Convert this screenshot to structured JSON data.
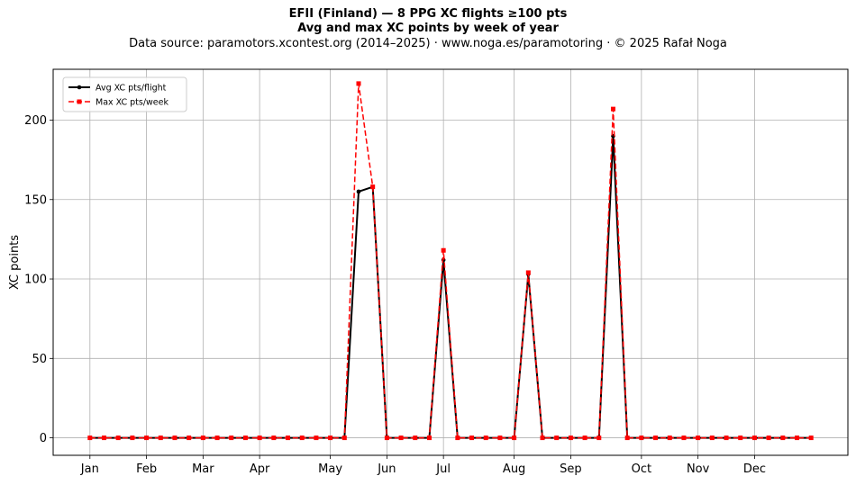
{
  "chart_data": {
    "type": "line",
    "title": "EFII (Finland)  —  8 PPG XC flights ≥100 pts",
    "subtitle": "Avg and max XC points by week of year",
    "source_line": "Data source: paramotors.xcontest.org (2014–2025)  ·  www.noga.es/paramotoring  ·  © 2025 Rafał Noga",
    "xlabel": "",
    "ylabel": "XC points",
    "x_unit": "week of year",
    "xlim": [
      -1.6,
      54.6
    ],
    "ylim": [
      -11,
      232
    ],
    "x_ticks": [
      {
        "label": "Jan",
        "week": 1
      },
      {
        "label": "Feb",
        "week": 5
      },
      {
        "label": "Mar",
        "week": 9
      },
      {
        "label": "Apr",
        "week": 13
      },
      {
        "label": "May",
        "week": 18
      },
      {
        "label": "Jun",
        "week": 22
      },
      {
        "label": "Jul",
        "week": 26
      },
      {
        "label": "Aug",
        "week": 31
      },
      {
        "label": "Sep",
        "week": 35
      },
      {
        "label": "Oct",
        "week": 40
      },
      {
        "label": "Nov",
        "week": 44
      },
      {
        "label": "Dec",
        "week": 48
      }
    ],
    "y_ticks": [
      0,
      50,
      100,
      150,
      200
    ],
    "grid": true,
    "legend": "top-left",
    "x": [
      1,
      2,
      3,
      4,
      5,
      6,
      7,
      8,
      9,
      10,
      11,
      12,
      13,
      14,
      15,
      16,
      17,
      18,
      19,
      20,
      21,
      22,
      23,
      24,
      25,
      26,
      27,
      28,
      29,
      30,
      31,
      32,
      33,
      34,
      35,
      36,
      37,
      38,
      39,
      40,
      41,
      42,
      43,
      44,
      45,
      46,
      47,
      48,
      49,
      50,
      51,
      52
    ],
    "series": [
      {
        "name": "Avg XC pts/flight",
        "color": "#000000",
        "style": "solid-dot",
        "values": [
          0,
          0,
          0,
          0,
          0,
          0,
          0,
          0,
          0,
          0,
          0,
          0,
          0,
          0,
          0,
          0,
          0,
          0,
          0,
          155,
          158,
          0,
          0,
          0,
          0,
          112,
          0,
          0,
          0,
          0,
          0,
          103,
          0,
          0,
          0,
          0,
          0,
          190,
          0,
          0,
          0,
          0,
          0,
          0,
          0,
          0,
          0,
          0,
          0,
          0,
          0,
          0
        ]
      },
      {
        "name": "Max XC pts/week",
        "color": "#ff0000",
        "style": "dashed-square",
        "values": [
          0,
          0,
          0,
          0,
          0,
          0,
          0,
          0,
          0,
          0,
          0,
          0,
          0,
          0,
          0,
          0,
          0,
          0,
          0,
          223,
          158,
          0,
          0,
          0,
          0,
          118,
          0,
          0,
          0,
          0,
          0,
          104,
          0,
          0,
          0,
          0,
          0,
          207,
          0,
          0,
          0,
          0,
          0,
          0,
          0,
          0,
          0,
          0,
          0,
          0,
          0,
          0
        ]
      }
    ]
  }
}
